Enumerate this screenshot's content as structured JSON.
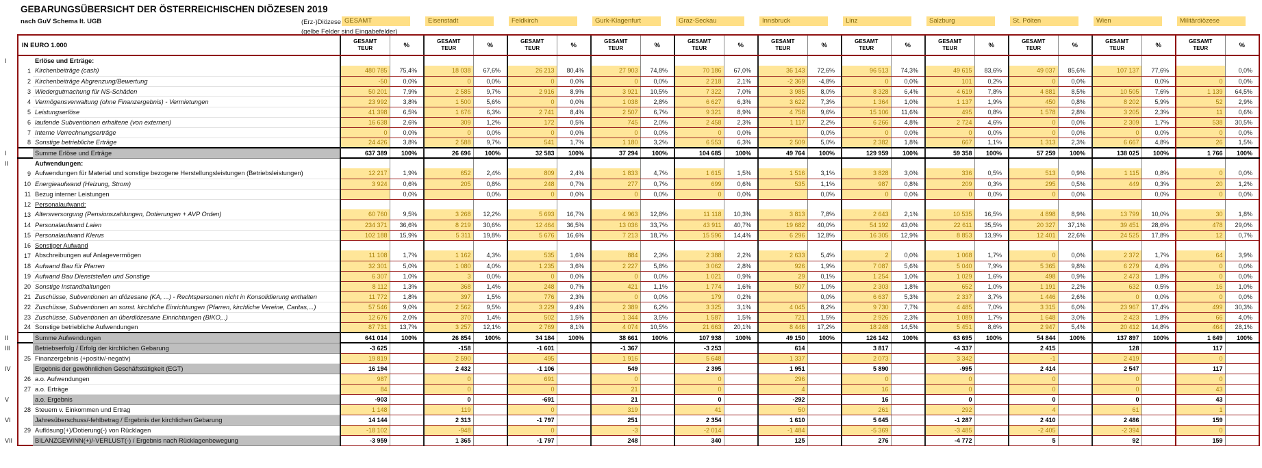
{
  "header": {
    "title": "GEBARUNGSÜBERSICHT DER ÖSTERREICHISCHEN DIÖZESEN 2019",
    "subtitle": "nach GuV Schema lt. UGB",
    "diozese_label": "(Erz-)Diözese",
    "note": "(gelbe Felder sind Eingabefelder)",
    "unit_label": "IN EURO 1.000",
    "value_col_header_line1": "GESAMT",
    "value_col_header_line2": "TEUR",
    "pct_col_header": "%"
  },
  "colors": {
    "input_cell_bg": "#ffe699",
    "input_text": "#a37a00",
    "maroon_border": "#8f1010",
    "section_gray": "#bfbfbf"
  },
  "dioceses": [
    "GESAMT",
    "Eisenstadt",
    "Feldkirch",
    "Gurk-Klagenfurt",
    "Graz-Seckau",
    "Innsbruck",
    "Linz",
    "Salzburg",
    "St. Pölten",
    "Wien",
    "Militärdiözese"
  ],
  "table": {
    "rows": [
      {
        "t": "sec",
        "rn": "I",
        "label": "Erlöse und Erträge:"
      },
      {
        "t": "item",
        "n": "1",
        "style": "i",
        "label": "Kirchenbeiträge (cash)",
        "v": [
          "480 785",
          "18 038",
          "26 213",
          "27 903",
          "70 186",
          "36 143",
          "96 513",
          "49 615",
          "49 037",
          "107 137",
          ""
        ],
        "p": [
          "75,4%",
          "67,6%",
          "80,4%",
          "74,8%",
          "67,0%",
          "72,6%",
          "74,3%",
          "83,6%",
          "85,6%",
          "77,6%",
          "0,0%"
        ]
      },
      {
        "t": "item",
        "n": "2",
        "style": "i",
        "label": "Kirchenbeiträge Abgrenzung/Bewertung",
        "v": [
          "-50",
          "0",
          "0",
          "0",
          "2 218",
          "-2 369",
          "0",
          "101",
          "0",
          "",
          "0"
        ],
        "p": [
          "0,0%",
          "0,0%",
          "0,0%",
          "0,0%",
          "2,1%",
          "-4,8%",
          "0,0%",
          "0,2%",
          "0,0%",
          "0,0%",
          "0,0%"
        ]
      },
      {
        "t": "item",
        "n": "3",
        "style": "i",
        "label": "Wiedergutmachung für NS-Schäden",
        "v": [
          "50 201",
          "2 585",
          "2 916",
          "3 921",
          "7 322",
          "3 985",
          "8 328",
          "4 619",
          "4 881",
          "10 505",
          "1 139"
        ],
        "p": [
          "7,9%",
          "9,7%",
          "8,9%",
          "10,5%",
          "7,0%",
          "8,0%",
          "6,4%",
          "7,8%",
          "8,5%",
          "7,6%",
          "64,5%"
        ]
      },
      {
        "t": "item",
        "n": "4",
        "style": "i",
        "label": "Vermögensverwaltung (ohne Finanzergebnis) - Vermietungen",
        "v": [
          "23 992",
          "1 500",
          "0",
          "1 038",
          "6 627",
          "3 622",
          "1 364",
          "1 137",
          "450",
          "8 202",
          "52"
        ],
        "p": [
          "3,8%",
          "5,6%",
          "0,0%",
          "2,8%",
          "6,3%",
          "7,3%",
          "1,0%",
          "1,9%",
          "0,8%",
          "5,9%",
          "2,9%"
        ]
      },
      {
        "t": "item",
        "n": "5",
        "style": "i",
        "label": "Leistungserlöse",
        "v": [
          "41 398",
          "1 676",
          "2 741",
          "2 507",
          "9 321",
          "4 758",
          "15 106",
          "495",
          "1 578",
          "3 205",
          "11"
        ],
        "p": [
          "6,5%",
          "6,3%",
          "8,4%",
          "6,7%",
          "8,9%",
          "9,6%",
          "11,6%",
          "0,8%",
          "2,8%",
          "2,3%",
          "0,6%"
        ]
      },
      {
        "t": "item",
        "n": "6",
        "style": "i",
        "label": "laufende Subventionen erhaltene (von externen)",
        "v": [
          "16 638",
          "309",
          "172",
          "745",
          "2 458",
          "1 117",
          "6 266",
          "2 724",
          "0",
          "2 309",
          "538"
        ],
        "p": [
          "2,6%",
          "1,2%",
          "0,5%",
          "2,0%",
          "2,3%",
          "2,2%",
          "4,8%",
          "4,6%",
          "0,0%",
          "1,7%",
          "30,5%"
        ]
      },
      {
        "t": "item",
        "n": "7",
        "style": "i",
        "label": "Interne Verrechnungserträge",
        "v": [
          "0",
          "0",
          "0",
          "0",
          "0",
          "",
          "0",
          "0",
          "0",
          "0",
          "0"
        ],
        "p": [
          "0,0%",
          "0,0%",
          "0,0%",
          "0,0%",
          "0,0%",
          "0,0%",
          "0,0%",
          "0,0%",
          "0,0%",
          "0,0%",
          "0,0%"
        ]
      },
      {
        "t": "item",
        "n": "8",
        "style": "i",
        "label": "Sonstige betriebliche Erträge",
        "v": [
          "24 426",
          "2 588",
          "541",
          "1 180",
          "6 553",
          "2 509",
          "2 382",
          "667",
          "1 313",
          "6 667",
          "26"
        ],
        "p": [
          "3,8%",
          "9,7%",
          "1,7%",
          "3,2%",
          "6,3%",
          "5,0%",
          "1,8%",
          "1,1%",
          "2,3%",
          "4,8%",
          "1,5%"
        ]
      },
      {
        "t": "sum",
        "rn": "I",
        "label": "Summe Erlöse und Erträge",
        "v": [
          "637 389",
          "26 696",
          "32 583",
          "37 294",
          "104 685",
          "49 764",
          "129 959",
          "59 358",
          "57 259",
          "138 025",
          "1 766"
        ],
        "p": [
          "100%",
          "100%",
          "100%",
          "100%",
          "100%",
          "100%",
          "100%",
          "100%",
          "100%",
          "100%",
          "100%"
        ]
      },
      {
        "t": "sec",
        "rn": "II",
        "label": "Aufwendungen:"
      },
      {
        "t": "item",
        "n": "9",
        "style": "n",
        "label": "Aufwendungen für Material und sonstige bezogene Herstellungsleistungen (Betriebsleistungen)",
        "v": [
          "12 217",
          "652",
          "809",
          "1 833",
          "1 615",
          "1 516",
          "3 828",
          "336",
          "513",
          "1 115",
          "0"
        ],
        "p": [
          "1,9%",
          "2,4%",
          "2,4%",
          "4,7%",
          "1,5%",
          "3,1%",
          "3,0%",
          "0,5%",
          "0,9%",
          "0,8%",
          "0,0%"
        ]
      },
      {
        "t": "item",
        "n": "10",
        "style": "i",
        "label": "Energieaufwand (Heizung, Strom)",
        "v": [
          "3 924",
          "205",
          "248",
          "277",
          "699",
          "535",
          "987",
          "209",
          "295",
          "449",
          "20"
        ],
        "p": [
          "0,6%",
          "0,8%",
          "0,7%",
          "0,7%",
          "0,6%",
          "1,1%",
          "0,8%",
          "0,3%",
          "0,5%",
          "0,3%",
          "1,2%"
        ]
      },
      {
        "t": "item",
        "n": "11",
        "style": "n",
        "label": "Bezug interner Leistungen",
        "v": [
          "",
          "",
          "0",
          "0",
          "0",
          "",
          "0",
          "0",
          "0",
          "",
          "0"
        ],
        "p": [
          "0,0%",
          "0,0%",
          "0,0%",
          "0,0%",
          "0,0%",
          "0,0%",
          "0,0%",
          "0,0%",
          "0,0%",
          "0,0%",
          "0,0%"
        ]
      },
      {
        "t": "sub",
        "n": "12",
        "label": "Personalaufwand:"
      },
      {
        "t": "item",
        "n": "13",
        "style": "i",
        "label": "Altersversorgung (Pensionszahlungen, Dotierungen + AVP Orden)",
        "v": [
          "60 760",
          "3 268",
          "5 693",
          "4 963",
          "11 118",
          "3 813",
          "2 643",
          "10 535",
          "4 898",
          "13 799",
          "30"
        ],
        "p": [
          "9,5%",
          "12,2%",
          "16,7%",
          "12,8%",
          "10,3%",
          "7,8%",
          "2,1%",
          "16,5%",
          "8,9%",
          "10,0%",
          "1,8%"
        ]
      },
      {
        "t": "item",
        "n": "14",
        "style": "i",
        "label": "Personalaufwand Laien",
        "v": [
          "234 371",
          "8 219",
          "12 464",
          "13 036",
          "43 911",
          "19 682",
          "54 192",
          "22 611",
          "20 327",
          "39 451",
          "478"
        ],
        "p": [
          "36,6%",
          "30,6%",
          "36,5%",
          "33,7%",
          "40,7%",
          "40,0%",
          "43,0%",
          "35,5%",
          "37,1%",
          "28,6%",
          "29,0%"
        ]
      },
      {
        "t": "item",
        "n": "15",
        "style": "i",
        "label": "Personalaufwand Klerus",
        "v": [
          "102 188",
          "5 311",
          "5 676",
          "7 213",
          "15 596",
          "6 296",
          "16 305",
          "8 853",
          "12 401",
          "24 525",
          "12"
        ],
        "p": [
          "15,9%",
          "19,8%",
          "16,6%",
          "18,7%",
          "14,4%",
          "12,8%",
          "12,9%",
          "13,9%",
          "22,6%",
          "17,8%",
          "0,7%"
        ]
      },
      {
        "t": "sub",
        "n": "16",
        "label": "Sonstiger Aufwand"
      },
      {
        "t": "item",
        "n": "17",
        "style": "n",
        "label": "Abschreibungen auf Anlagevermögen",
        "v": [
          "11 108",
          "1 162",
          "535",
          "884",
          "2 388",
          "2 633",
          "2",
          "1 068",
          "0",
          "2 372",
          "64"
        ],
        "p": [
          "1,7%",
          "4,3%",
          "1,6%",
          "2,3%",
          "2,2%",
          "5,4%",
          "0,0%",
          "1,7%",
          "0,0%",
          "1,7%",
          "3,9%"
        ]
      },
      {
        "t": "item",
        "n": "18",
        "style": "i",
        "label": "Aufwand Bau für Pfarren",
        "v": [
          "32 301",
          "1 080",
          "1 235",
          "2 227",
          "3 062",
          "926",
          "7 087",
          "5 040",
          "5 365",
          "6 279",
          "0"
        ],
        "p": [
          "5,0%",
          "4,0%",
          "3,6%",
          "5,8%",
          "2,8%",
          "1,9%",
          "5,6%",
          "7,9%",
          "9,8%",
          "4,6%",
          "0,0%"
        ]
      },
      {
        "t": "item",
        "n": "19",
        "style": "i",
        "label": "Aufwand Bau Dienststellen und Sonstige",
        "v": [
          "6 307",
          "3",
          "0",
          "0",
          "1 021",
          "29",
          "1 254",
          "1 029",
          "498",
          "2 473",
          "0"
        ],
        "p": [
          "1,0%",
          "0,0%",
          "0,0%",
          "0,0%",
          "0,9%",
          "0,1%",
          "1,0%",
          "1,6%",
          "0,9%",
          "1,8%",
          "0,0%"
        ]
      },
      {
        "t": "item",
        "n": "20",
        "style": "i",
        "label": "Sonstige Instandhaltungen",
        "v": [
          "8 112",
          "368",
          "248",
          "421",
          "1 774",
          "507",
          "2 303",
          "652",
          "1 191",
          "632",
          "16"
        ],
        "p": [
          "1,3%",
          "1,4%",
          "0,7%",
          "1,1%",
          "1,6%",
          "1,0%",
          "1,8%",
          "1,0%",
          "2,2%",
          "0,5%",
          "1,0%"
        ]
      },
      {
        "t": "item",
        "n": "21",
        "style": "i",
        "label": "Zuschüsse, Subventionen an diözesane (KA, ...) - Rechtspersonen nicht in Konsolidierung enthalten",
        "v": [
          "11 772",
          "397",
          "776",
          "0",
          "179",
          "",
          "6 637",
          "2 337",
          "1 446",
          "0",
          "0"
        ],
        "p": [
          "1,8%",
          "1,5%",
          "2,3%",
          "0,0%",
          "0,2%",
          "0,0%",
          "5,3%",
          "3,7%",
          "2,6%",
          "0,0%",
          "0,0%"
        ]
      },
      {
        "t": "item",
        "n": "22",
        "style": "i",
        "label": "Zuschüsse, Subventionen an sonst. kirchliche Einrichtungen (Pfarren, kirchliche Vereine, Caritas,...)",
        "v": [
          "57 546",
          "2 562",
          "3 229",
          "2 389",
          "3 325",
          "4 045",
          "9 730",
          "4 485",
          "3 315",
          "23 967",
          "499"
        ],
        "p": [
          "9,0%",
          "9,5%",
          "9,4%",
          "6,2%",
          "3,1%",
          "8,2%",
          "7,7%",
          "7,0%",
          "6,0%",
          "17,4%",
          "30,3%"
        ]
      },
      {
        "t": "item",
        "n": "23",
        "style": "i",
        "label": "Zuschüsse, Subventionen an überdiözesane Einrichtungen (BIKO,..)",
        "v": [
          "12 676",
          "370",
          "502",
          "1 344",
          "1 587",
          "721",
          "2 926",
          "1 089",
          "1 648",
          "2 423",
          "66"
        ],
        "p": [
          "2,0%",
          "1,4%",
          "1,5%",
          "3,5%",
          "1,5%",
          "1,5%",
          "2,3%",
          "1,7%",
          "3,0%",
          "1,8%",
          "4,0%"
        ]
      },
      {
        "t": "item",
        "n": "24",
        "style": "n",
        "label": "Sonstige betriebliche Aufwendungen",
        "v": [
          "87 731",
          "3 257",
          "2 769",
          "4 074",
          "21 663",
          "8 446",
          "18 248",
          "5 451",
          "2 947",
          "20 412",
          "464"
        ],
        "p": [
          "13,7%",
          "12,1%",
          "8,1%",
          "10,5%",
          "20,1%",
          "17,2%",
          "14,5%",
          "8,6%",
          "5,4%",
          "14,8%",
          "28,1%"
        ]
      },
      {
        "t": "sum",
        "rn": "II",
        "label": "Summe Aufwendungen",
        "v": [
          "641 014",
          "26 854",
          "34 184",
          "38 661",
          "107 938",
          "49 150",
          "126 142",
          "63 695",
          "54 844",
          "137 897",
          "1 649"
        ],
        "p": [
          "100%",
          "100%",
          "100%",
          "100%",
          "100%",
          "100%",
          "100%",
          "100%",
          "100%",
          "100%",
          "100%"
        ]
      },
      {
        "t": "res",
        "rn": "III",
        "label": "Betriebserfolg / Erfolg der kirchlichen Gebarung",
        "v": [
          "-3 625",
          "-158",
          "-1 601",
          "-1 367",
          "-3 253",
          "614",
          "3 817",
          "-4 337",
          "2 415",
          "128",
          "117"
        ]
      },
      {
        "t": "item2",
        "n": "25",
        "style": "n",
        "label": "Finanzergebnis (+positiv/-negativ)",
        "v": [
          "19 819",
          "2 590",
          "495",
          "1 916",
          "5 648",
          "1 337",
          "2 073",
          "3 342",
          "-1",
          "2 419",
          "0"
        ]
      },
      {
        "t": "res",
        "rn": "IV",
        "label": "Ergebnis der gewöhnlichen Geschäftstätigkeit (EGT)",
        "v": [
          "16 194",
          "2 432",
          "-1 106",
          "549",
          "2 395",
          "1 951",
          "5 890",
          "-995",
          "2 414",
          "2 547",
          "117"
        ]
      },
      {
        "t": "item2",
        "n": "26",
        "style": "n",
        "label": "a.o. Aufwendungen",
        "v": [
          "987",
          "0",
          "691",
          "0",
          "0",
          "296",
          "0",
          "0",
          "0",
          "0",
          "0"
        ]
      },
      {
        "t": "item2",
        "n": "27",
        "style": "n",
        "label": "a.o. Erträge",
        "v": [
          "84",
          "0",
          "0",
          "21",
          "0",
          "4",
          "16",
          "0",
          "0",
          "0",
          "43"
        ]
      },
      {
        "t": "res",
        "rn": "V",
        "label": "a.o. Ergebnis",
        "v": [
          "-903",
          "0",
          "-691",
          "21",
          "0",
          "-292",
          "16",
          "0",
          "0",
          "0",
          "43"
        ]
      },
      {
        "t": "item2",
        "n": "28",
        "style": "n",
        "label": "Steuern v. Einkommen und Ertrag",
        "v": [
          "1 148",
          "119",
          "0",
          "319",
          "41",
          "50",
          "261",
          "292",
          "4",
          "61",
          "1"
        ]
      },
      {
        "t": "res",
        "rn": "VI",
        "label": "Jahresüberschuss/-fehlbetrag / Ergebnis der kirchlichen Gebarung",
        "v": [
          "14 144",
          "2 313",
          "-1 797",
          "251",
          "2 354",
          "1 610",
          "5 645",
          "-1 287",
          "2 410",
          "2 486",
          "159"
        ]
      },
      {
        "t": "item2",
        "n": "29",
        "style": "n",
        "label": "Auflösung(+)/Dotierung(-) von Rücklagen",
        "v": [
          "-18 102",
          "-948",
          "0",
          "-3",
          "-2 014",
          "-1 484",
          "-5 369",
          "-3 485",
          "-2 405",
          "-2 394",
          "0"
        ]
      },
      {
        "t": "res",
        "rn": "VII",
        "label": "BILANZGEWINN(+)/-VERLUST(-) / Ergebnis nach Rücklagenbewegung",
        "v": [
          "-3 959",
          "1 365",
          "-1 797",
          "248",
          "340",
          "125",
          "276",
          "-4 772",
          "5",
          "92",
          "159"
        ]
      }
    ]
  }
}
